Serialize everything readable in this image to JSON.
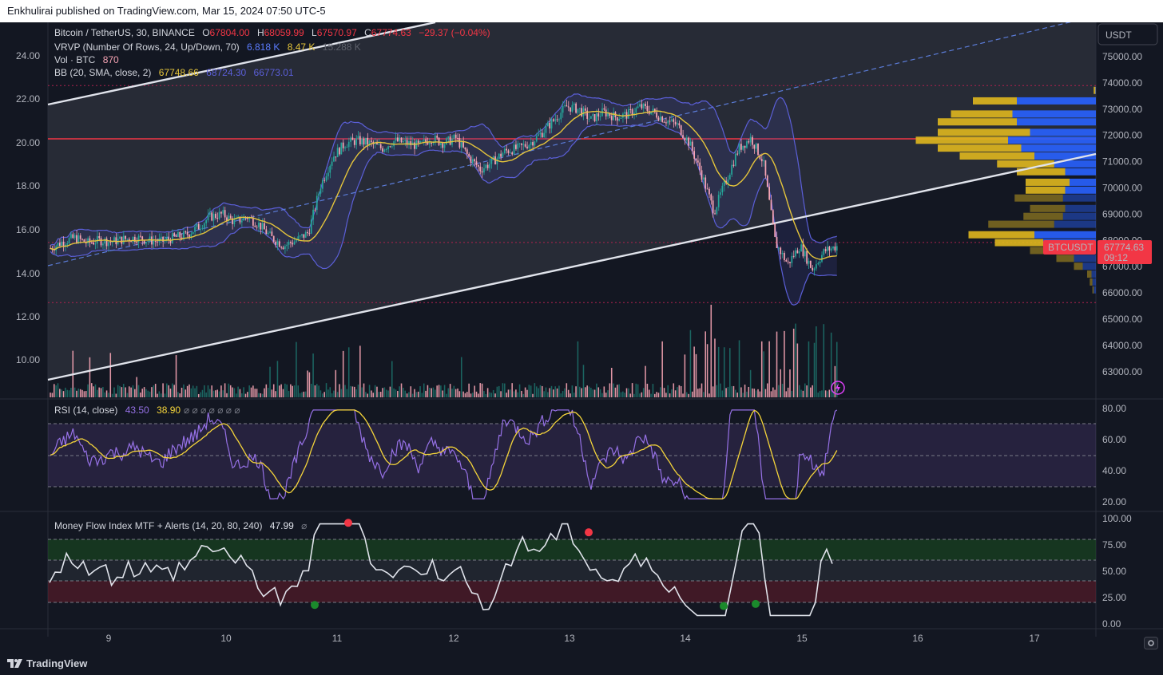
{
  "header": {
    "published": "Enkhulirai published on TradingView.com, Mar 15, 2024 07:50 UTC-5"
  },
  "footer": {
    "brand": "TradingView"
  },
  "price_scale": {
    "currency": "USDT",
    "ticks": [
      "75000.00",
      "74000.00",
      "73000.00",
      "72000.00",
      "71000.00",
      "70000.00",
      "69000.00",
      "68000.00",
      "67000.00",
      "66000.00",
      "65000.00",
      "64000.00",
      "63000.00"
    ],
    "left_ticks": [
      "24.00",
      "22.00",
      "20.00",
      "18.00",
      "16.00",
      "14.00",
      "12.00",
      "10.00"
    ],
    "last_price_symbol": "BTCUSDT",
    "last_price": "67774.63",
    "countdown": "09:12"
  },
  "legend": {
    "symbol": "Bitcoin / TetherUS, 30, BINANCE",
    "o_label": "O",
    "o": "67804.00",
    "h_label": "H",
    "h": "68059.99",
    "l_label": "L",
    "l": "67570.97",
    "c_label": "C",
    "c": "67774.63",
    "change": "−29.37 (−0.04%)",
    "vrvp_label": "VRVP (Number Of Rows, 24, Up/Down, 70)",
    "vrvp_up": "6.818 K",
    "vrvp_down": "8.47 K",
    "vrvp_total": "15.288 K",
    "vol_label": "Vol · BTC",
    "vol": "870",
    "bb_label": "BB (20, SMA, close, 2)",
    "bb_basis": "67748.66",
    "bb_upper": "68724.30",
    "bb_lower": "66773.01"
  },
  "rsi": {
    "label": "RSI (14, close)",
    "value": "43.50",
    "ma": "38.90",
    "ticks": [
      "80.00",
      "60.00",
      "40.00",
      "20.00"
    ]
  },
  "mfi": {
    "label": "Money Flow Index MTF + Alerts (14, 20, 80, 240)",
    "value": "47.99",
    "ticks": [
      "100.00",
      "75.00",
      "50.00",
      "25.00",
      "0.00"
    ]
  },
  "time_axis": {
    "ticks": [
      "9",
      "10",
      "11",
      "12",
      "13",
      "14",
      "15",
      "16",
      "17"
    ]
  },
  "colors": {
    "up": "#26a69a",
    "down": "#f7a4b4",
    "bb_basis": "#e5c53b",
    "bb_band": "#5b5fd8",
    "rsi": "#9671e6",
    "rsi_ma": "#f5d53a",
    "mfi": "#e0e3eb",
    "red_line": "#f23645",
    "vp_up": "#2962ff",
    "vp_down": "#e0b71e"
  },
  "icons": [
    "gear-icon",
    "flash-alert-icon",
    "tradingview-logo-icon",
    "eye-off-icon"
  ],
  "chart_data": {
    "type": "candlestick",
    "title": "Bitcoin / TetherUS, 30, BINANCE",
    "ylim": [
      62500,
      75500
    ],
    "x_ticks": [
      "9",
      "10",
      "11",
      "12",
      "13",
      "14",
      "15",
      "16",
      "17"
    ],
    "approx_closes": [
      67700,
      67950,
      68100,
      67900,
      68000,
      67950,
      68050,
      68100,
      68000,
      67950,
      68100,
      68200,
      68500,
      68900,
      69000,
      68700,
      68900,
      68600,
      68100,
      67800,
      68000,
      68300,
      70100,
      71200,
      71700,
      71800,
      71700,
      71500,
      71800,
      71700,
      71600,
      71900,
      71700,
      71900,
      71200,
      70700,
      71000,
      71400,
      71500,
      71700,
      72100,
      72600,
      73100,
      73000,
      72600,
      72900,
      72700,
      72800,
      73100,
      72900,
      72600,
      72400,
      71700,
      70500,
      69100,
      70300,
      71500,
      71900,
      71000,
      67900,
      67100,
      67800,
      66900,
      67600,
      67775
    ],
    "key_levels": [
      {
        "price": 73900
      },
      {
        "price": 71870
      },
      {
        "price": 67920
      },
      {
        "price": 65630
      }
    ]
  }
}
